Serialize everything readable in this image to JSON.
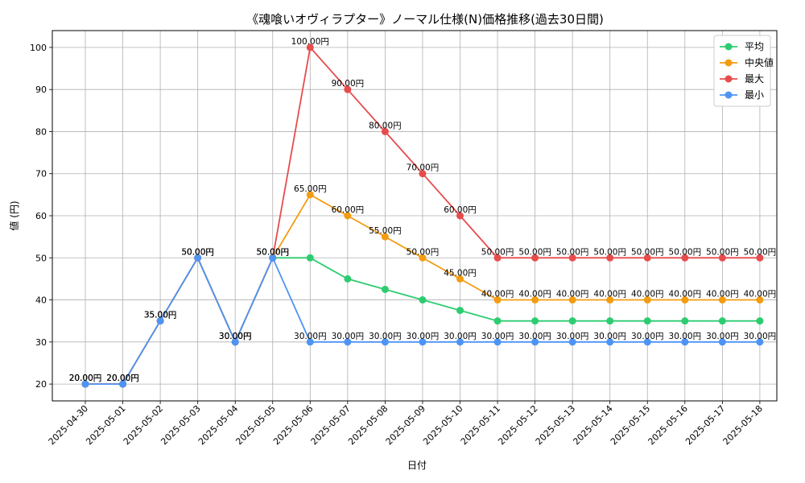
{
  "chart_data": {
    "type": "line",
    "title": "《魂喰いオヴィラプター》ノーマル仕様(N)価格推移(過去30日間)",
    "xlabel": "日付",
    "ylabel": "値 (円)",
    "ylim": [
      16,
      104
    ],
    "yticks": [
      20,
      30,
      40,
      50,
      60,
      70,
      80,
      90,
      100
    ],
    "grid": true,
    "legend_position": "top-right",
    "label_suffix": "円",
    "categories": [
      "2025-04-30",
      "2025-05-01",
      "2025-05-02",
      "2025-05-03",
      "2025-05-04",
      "2025-05-05",
      "2025-05-06",
      "2025-05-07",
      "2025-05-08",
      "2025-05-09",
      "2025-05-10",
      "2025-05-11",
      "2025-05-12",
      "2025-05-13",
      "2025-05-14",
      "2025-05-15",
      "2025-05-16",
      "2025-05-17",
      "2025-05-18"
    ],
    "series": [
      {
        "name": "平均",
        "color": "#2ecc71",
        "values": [
          20,
          20,
          35,
          50,
          30,
          50,
          50,
          45,
          42.5,
          40,
          37.5,
          35,
          35,
          35,
          35,
          35,
          35,
          35,
          35
        ]
      },
      {
        "name": "中央値",
        "color": "#f39c12",
        "values": [
          20,
          20,
          35,
          50,
          30,
          50,
          65,
          60,
          55,
          50,
          45,
          40,
          40,
          40,
          40,
          40,
          40,
          40,
          40
        ]
      },
      {
        "name": "最大",
        "color": "#e74c4c",
        "values": [
          20,
          20,
          35,
          50,
          30,
          50,
          100,
          90,
          80,
          70,
          60,
          50,
          50,
          50,
          50,
          50,
          50,
          50,
          50
        ]
      },
      {
        "name": "最小",
        "color": "#4d94f5",
        "values": [
          20,
          20,
          35,
          50,
          30,
          50,
          30,
          30,
          30,
          30,
          30,
          30,
          30,
          30,
          30,
          30,
          30,
          30,
          30
        ]
      }
    ]
  }
}
